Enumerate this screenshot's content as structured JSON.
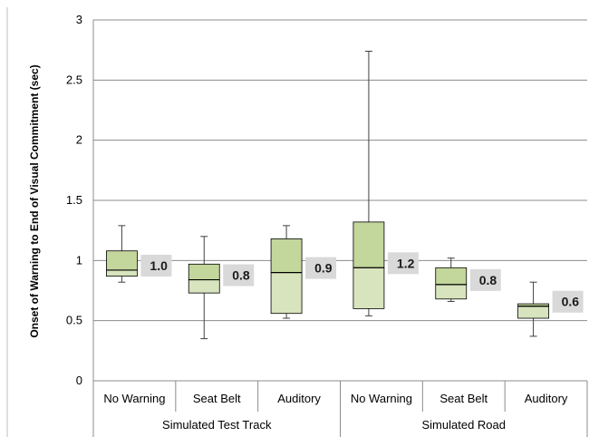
{
  "chart_data": {
    "type": "boxplot",
    "ylabel": "Onset of Warning to End of Visual Commitment (sec)",
    "ylim": [
      0,
      3
    ],
    "yticks": [
      0,
      0.5,
      1,
      1.5,
      2,
      2.5,
      3
    ],
    "ytick_labels": [
      "0",
      "0.5",
      "1",
      "1.5",
      "2",
      "2.5",
      "3"
    ],
    "grid": true,
    "groups": [
      {
        "label": "Simulated Test Track",
        "categories": [
          "No Warning",
          "Seat Belt",
          "Auditory"
        ]
      },
      {
        "label": "Simulated Road",
        "categories": [
          "No Warning",
          "Seat Belt",
          "Auditory"
        ]
      }
    ],
    "boxes": [
      {
        "group": "Simulated Test Track",
        "category": "No Warning",
        "min": 0.82,
        "q1": 0.87,
        "median": 0.92,
        "q3": 1.08,
        "max": 1.29,
        "label": "1.0"
      },
      {
        "group": "Simulated Test Track",
        "category": "Seat Belt",
        "min": 0.35,
        "q1": 0.73,
        "median": 0.84,
        "q3": 0.97,
        "max": 1.2,
        "label": "0.8"
      },
      {
        "group": "Simulated Test Track",
        "category": "Auditory",
        "min": 0.52,
        "q1": 0.56,
        "median": 0.9,
        "q3": 1.18,
        "max": 1.29,
        "label": "0.9"
      },
      {
        "group": "Simulated Road",
        "category": "No Warning",
        "min": 0.54,
        "q1": 0.6,
        "median": 0.94,
        "q3": 1.32,
        "max": 2.74,
        "label": "1.2"
      },
      {
        "group": "Simulated Road",
        "category": "Seat Belt",
        "min": 0.66,
        "q1": 0.68,
        "median": 0.8,
        "q3": 0.94,
        "max": 1.02,
        "label": "0.8"
      },
      {
        "group": "Simulated Road",
        "category": "Auditory",
        "min": 0.37,
        "q1": 0.52,
        "median": 0.62,
        "q3": 0.64,
        "max": 0.82,
        "label": "0.6"
      }
    ],
    "colors": {
      "upper_box": "#c3d69b",
      "lower_box": "#d7e4bd",
      "box_stroke": "#000000",
      "whisker": "#404040",
      "gridline": "#8c8c8c",
      "label_bg": "#d9d9d9"
    }
  }
}
